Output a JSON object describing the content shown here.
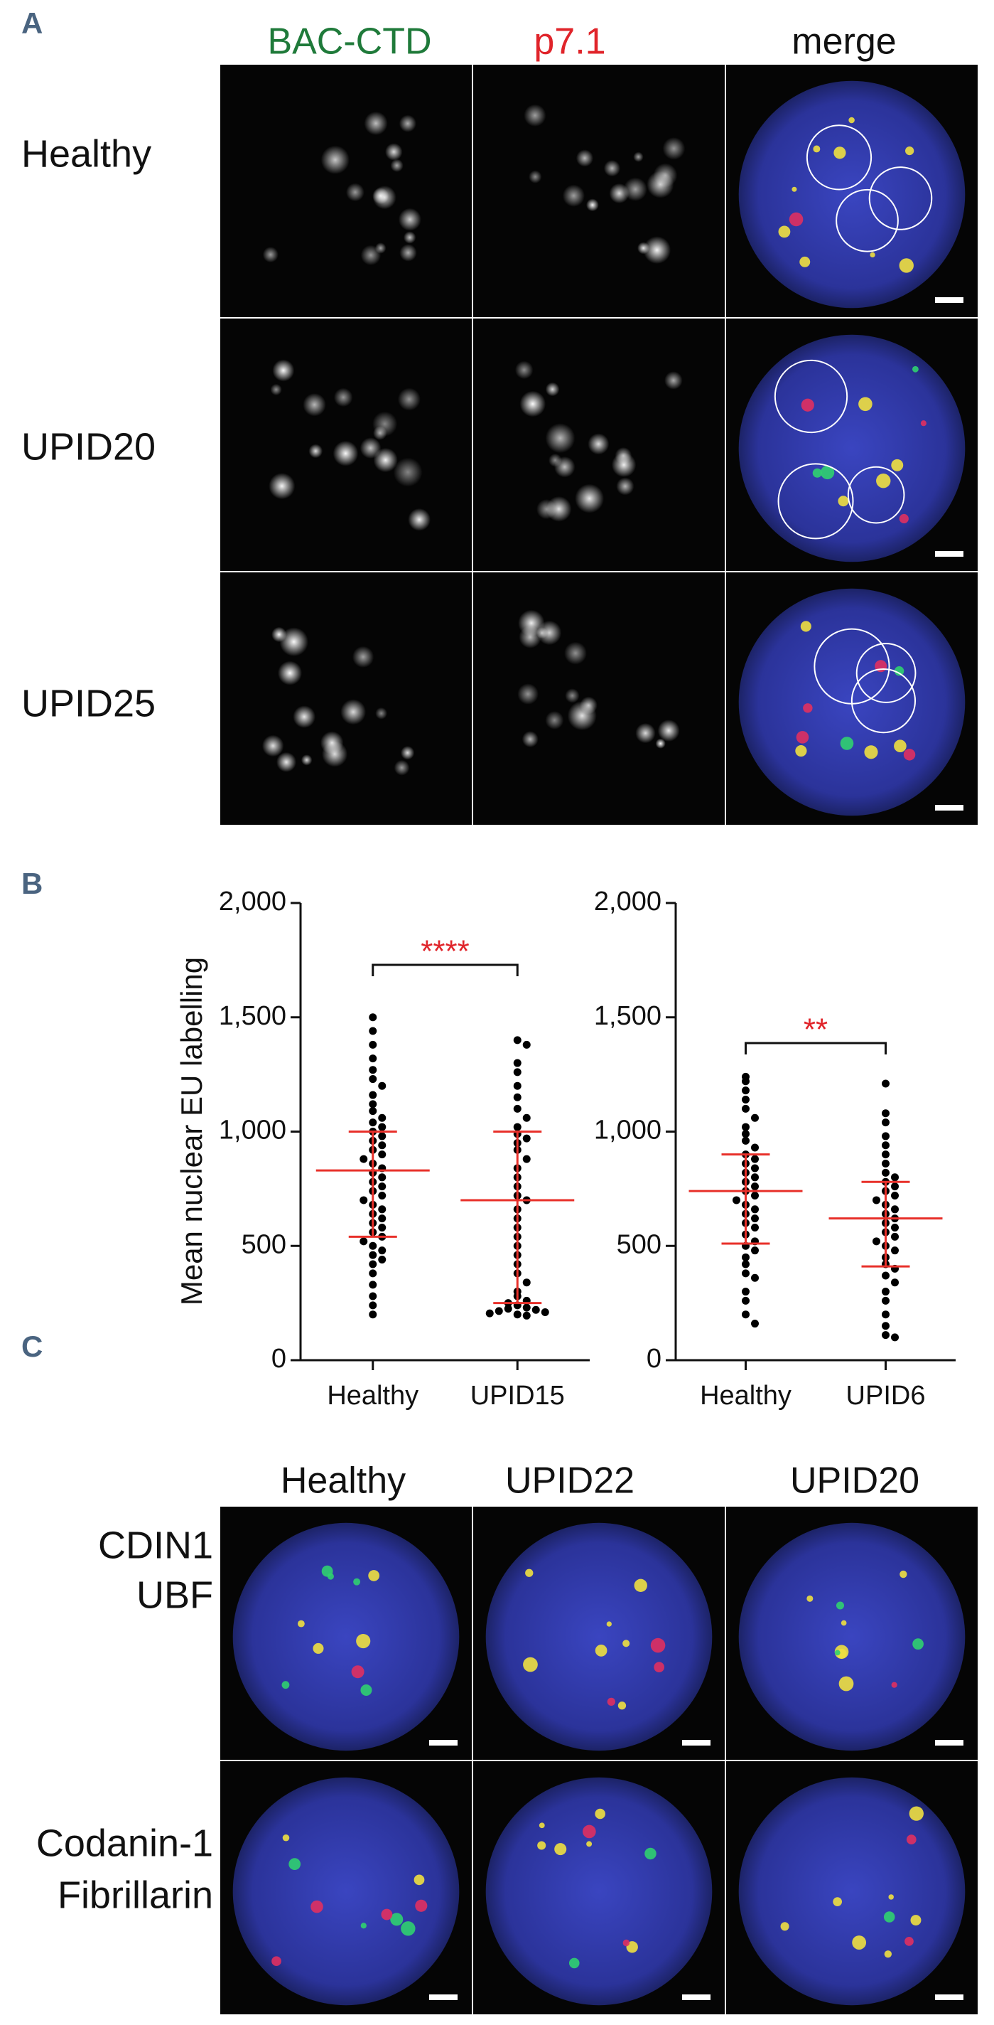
{
  "panel_labels": [
    "A",
    "B",
    "C"
  ],
  "panel_a": {
    "columns": [
      "BAC-CTD",
      "p7.1",
      "merge"
    ],
    "rows": [
      "Healthy",
      "UPID20",
      "UPID25"
    ]
  },
  "panel_c": {
    "columns": [
      "Healthy",
      "UPID22",
      "UPID20"
    ],
    "rows": [
      [
        "CDIN1",
        "UBF"
      ],
      [
        "Codanin-1",
        "Fibrillarin"
      ]
    ]
  },
  "chart_data": [
    {
      "type": "strip",
      "ylabel": "Mean nuclear EU labelling",
      "categories": [
        "Healthy",
        "UPID15"
      ],
      "values": [
        [
          1500,
          1440,
          1380,
          1320,
          1270,
          1230,
          1200,
          1160,
          1120,
          1090,
          1060,
          1040,
          1020,
          1000,
          980,
          960,
          940,
          920,
          900,
          880,
          860,
          840,
          820,
          800,
          780,
          760,
          740,
          720,
          700,
          680,
          660,
          640,
          620,
          600,
          580,
          560,
          540,
          520,
          500,
          480,
          460,
          440,
          420,
          380,
          330,
          280,
          240,
          200
        ],
        [
          1400,
          1380,
          1300,
          1260,
          1200,
          1150,
          1100,
          1060,
          1020,
          990,
          970,
          950,
          920,
          880,
          840,
          800,
          760,
          720,
          700,
          660,
          620,
          580,
          540,
          500,
          460,
          420,
          380,
          340,
          300,
          280,
          260,
          250,
          240,
          230,
          225,
          220,
          215,
          210,
          205,
          200,
          195
        ]
      ],
      "medians": [
        830,
        700
      ],
      "iqr": [
        [
          540,
          1000
        ],
        [
          250,
          1000
        ]
      ],
      "annotation": "****",
      "color": "#000000",
      "summary_color": "#e8302a",
      "ylim": [
        0,
        2000
      ],
      "yticks": [
        0,
        500,
        {
          "value": 1000,
          "label": "1,000"
        },
        {
          "value": 1500,
          "label": "1,500"
        },
        {
          "value": 2000,
          "label": "2,000"
        }
      ]
    },
    {
      "type": "strip",
      "categories": [
        "Healthy",
        "UPID6"
      ],
      "values": [
        [
          1240,
          1220,
          1180,
          1140,
          1100,
          1060,
          1020,
          990,
          960,
          930,
          900,
          880,
          860,
          840,
          820,
          800,
          780,
          760,
          740,
          720,
          700,
          680,
          660,
          640,
          620,
          600,
          580,
          550,
          520,
          500,
          480,
          450,
          420,
          380,
          360,
          300,
          260,
          200,
          160
        ],
        [
          1210,
          1080,
          1040,
          980,
          940,
          900,
          860,
          820,
          800,
          780,
          760,
          740,
          720,
          700,
          680,
          660,
          640,
          620,
          600,
          580,
          560,
          540,
          520,
          500,
          480,
          450,
          420,
          400,
          370,
          340,
          300,
          260,
          200,
          150,
          110,
          100
        ]
      ],
      "medians": [
        740,
        620
      ],
      "iqr": [
        [
          510,
          900
        ],
        [
          410,
          780
        ]
      ],
      "annotation": "**",
      "color": "#000000",
      "summary_color": "#e8302a",
      "ylim": [
        0,
        2000
      ],
      "yticks": [
        0,
        500,
        {
          "value": 1000,
          "label": "1,000"
        },
        {
          "value": 1500,
          "label": "1,500"
        },
        {
          "value": 2000,
          "label": "2,000"
        }
      ]
    }
  ]
}
